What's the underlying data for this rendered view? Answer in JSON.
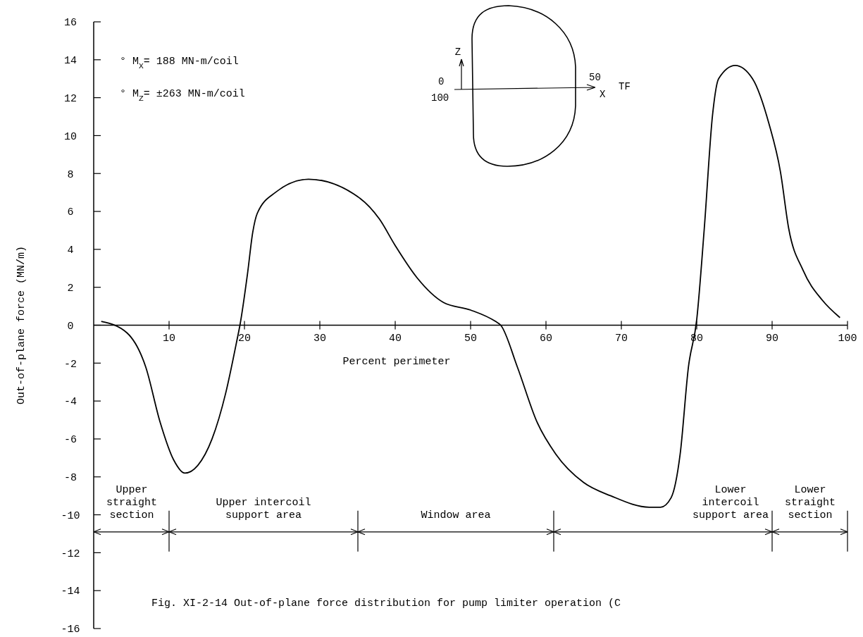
{
  "chart_data": {
    "type": "line",
    "xlabel": "Percent perimeter",
    "ylabel": "Out-of-plane force (MN/m)",
    "xlim": [
      0,
      100
    ],
    "ylim": [
      -16,
      16
    ],
    "xticks": [
      10,
      20,
      30,
      40,
      50,
      60,
      70,
      80,
      90,
      100
    ],
    "yticks": [
      -16,
      -14,
      -12,
      -10,
      -8,
      -6,
      -4,
      -2,
      0,
      2,
      4,
      6,
      8,
      10,
      12,
      14,
      16
    ],
    "grid": false,
    "marker": "none",
    "line_style": "solid",
    "series": [
      {
        "color": "#000000",
        "x": [
          1,
          4.4,
          6.9,
          8.8,
          10.6,
          12.1,
          13.8,
          15.7,
          17.5,
          19,
          19.4,
          20.4,
          21.1,
          21.7,
          24.1,
          28.5,
          35.3,
          37.9,
          40,
          42.9,
          46.4,
          50,
          53.3,
          54,
          56.2,
          58.8,
          61.3,
          65,
          68.6,
          73.7,
          75.2,
          76.6,
          77.8,
          78.9,
          80,
          81,
          82.1,
          82.9,
          85.1,
          87.4,
          89.6,
          91.1,
          92.2,
          94.1,
          96.7,
          99
        ],
        "values": [
          0.2,
          -0.4,
          -2.2,
          -5.1,
          -7.1,
          -7.8,
          -7.4,
          -6,
          -3.6,
          -0.8,
          0,
          2.7,
          4.9,
          5.9,
          7,
          7.7,
          6.7,
          5.6,
          4.2,
          2.5,
          1.2,
          0.8,
          0.2,
          0,
          -2.2,
          -5.1,
          -6.8,
          -8.3,
          -9,
          -9.6,
          -9.6,
          -9.1,
          -6.8,
          -2.2,
          0.3,
          5.1,
          11.1,
          13,
          13.7,
          13,
          10.6,
          8.1,
          5.1,
          2.9,
          1.3,
          0.4
        ]
      }
    ],
    "annotations": [
      "° M$_{X}$= 188 MN-m/coil",
      "° M$_{Z}$= ±263 MN-m/coil",
      "Fig. XI-2-14  Out-of-plane force distribution for pump limiter operation (C",
      "Z",
      "0",
      "100",
      "50",
      "X",
      "TF",
      "Upper\nstraight\nsection",
      "Upper intercoil\nsupport area",
      "Window area",
      "Lower\nintercoil\nsupport area",
      "Lower\nstraight\nsection"
    ]
  }
}
